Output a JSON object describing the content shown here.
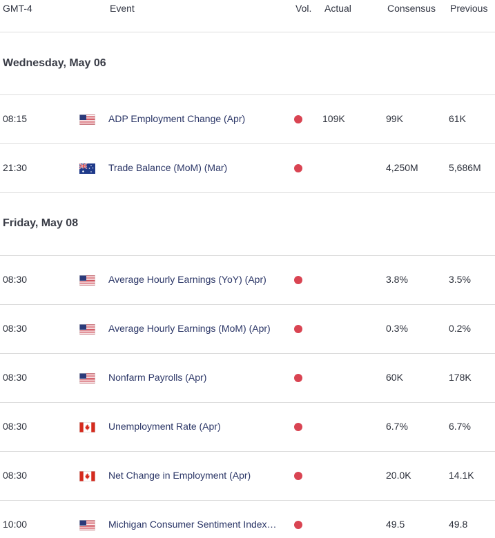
{
  "header": {
    "timezone": "GMT-4",
    "event": "Event",
    "vol": "Vol.",
    "actual": "Actual",
    "consensus": "Consensus",
    "previous": "Previous"
  },
  "days": [
    {
      "label": "Wednesday, May 06",
      "events": [
        {
          "time": "08:15",
          "flag": "us-flag-icon",
          "event": "ADP Employment Change (Apr)",
          "volatility": "high",
          "actual": "109K",
          "consensus": "99K",
          "previous": "61K"
        },
        {
          "time": "21:30",
          "flag": "au-flag-icon",
          "event": "Trade Balance (MoM) (Mar)",
          "volatility": "high",
          "actual": "",
          "consensus": "4,250M",
          "previous": "5,686M"
        }
      ]
    },
    {
      "label": "Friday, May 08",
      "events": [
        {
          "time": "08:30",
          "flag": "us-flag-icon",
          "event": "Average Hourly Earnings (YoY) (Apr)",
          "volatility": "high",
          "actual": "",
          "consensus": "3.8%",
          "previous": "3.5%"
        },
        {
          "time": "08:30",
          "flag": "us-flag-icon",
          "event": "Average Hourly Earnings (MoM) (Apr)",
          "volatility": "high",
          "actual": "",
          "consensus": "0.3%",
          "previous": "0.2%"
        },
        {
          "time": "08:30",
          "flag": "us-flag-icon",
          "event": "Nonfarm Payrolls (Apr)",
          "volatility": "high",
          "actual": "",
          "consensus": "60K",
          "previous": "178K"
        },
        {
          "time": "08:30",
          "flag": "ca-flag-icon",
          "event": "Unemployment Rate (Apr)",
          "volatility": "high",
          "actual": "",
          "consensus": "6.7%",
          "previous": "6.7%"
        },
        {
          "time": "08:30",
          "flag": "ca-flag-icon",
          "event": "Net Change in Employment (Apr)",
          "volatility": "high",
          "actual": "",
          "consensus": "20.0K",
          "previous": "14.1K"
        },
        {
          "time": "10:00",
          "flag": "us-flag-icon",
          "event": "Michigan Consumer Sentiment Index…",
          "volatility": "high",
          "actual": "",
          "consensus": "49.5",
          "previous": "49.8"
        }
      ]
    }
  ],
  "colors": {
    "high_volatility": "#d94452",
    "event_text": "#2a3566",
    "divider": "#dcdcdc"
  }
}
